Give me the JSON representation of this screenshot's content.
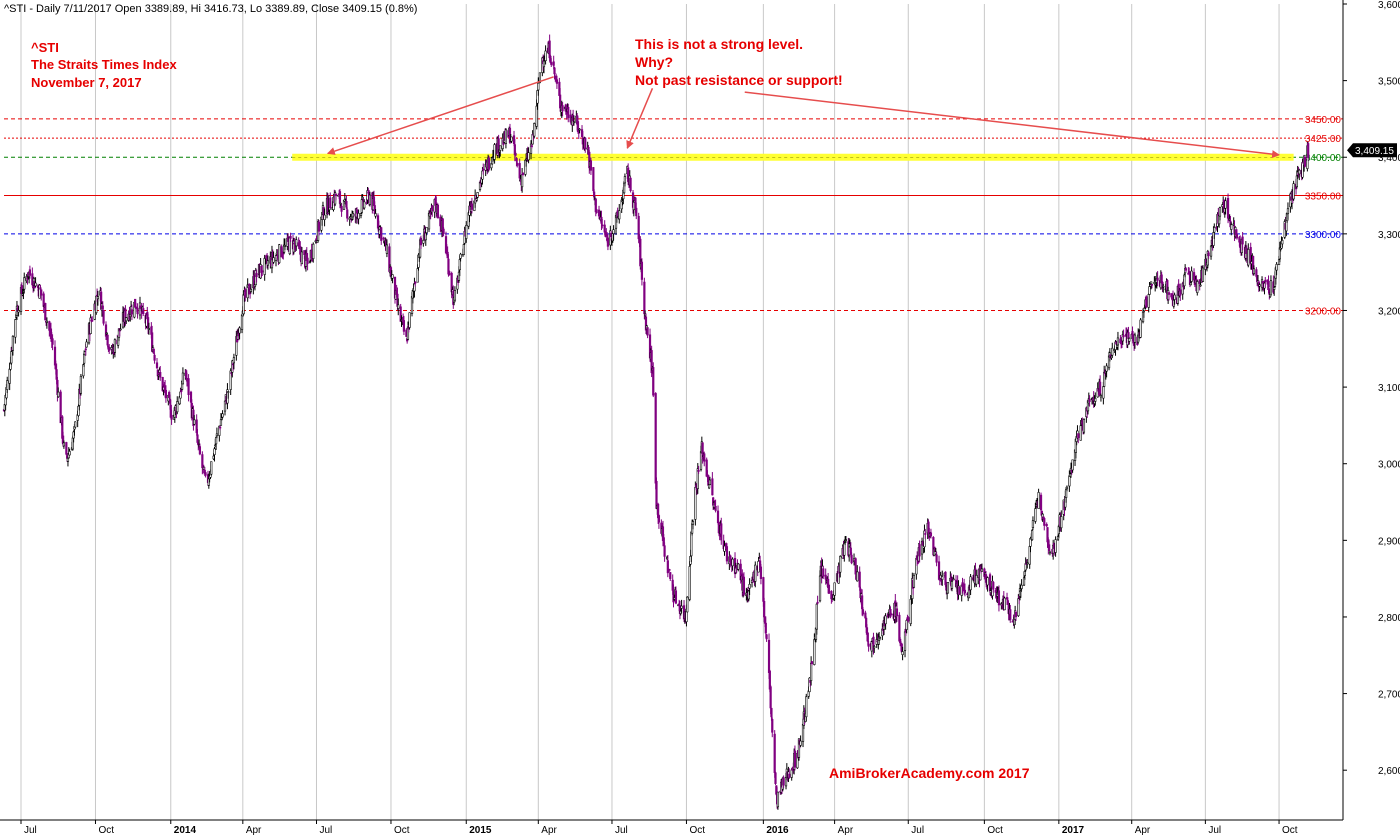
{
  "header_text": "^STI - Daily 7/11/2017 Open 3389.89, Hi 3416.73, Lo 3389.89, Close 3409.15 (0.8%)",
  "title_lines": [
    "^STI",
    "The Straits Times Index",
    "November 7, 2017"
  ],
  "annotation_lines": [
    "This is not a strong level.",
    "Why?",
    "Not past resistance or support!"
  ],
  "watermark": "AmiBrokerAcademy.com  2017",
  "colors": {
    "title": "#e60000",
    "annotation": "#e60000",
    "arrow": "#e64d4d",
    "highlight": "#ffff33",
    "bull_candle": "#000000",
    "bear_candle": "#800080",
    "price_tag": "#000000"
  },
  "chart_data": {
    "type": "candlestick",
    "symbol": "^STI",
    "interval": "Daily",
    "ylim": [
      2535,
      3600
    ],
    "x_range": [
      "2013-06-10",
      "2017-12-20"
    ],
    "y_ticks": [
      2600,
      2700,
      2800,
      2900,
      3000,
      3100,
      3200,
      3300,
      3400,
      3500,
      3600
    ],
    "y_tick_labels": [
      "2,600",
      "2,700",
      "2,800",
      "2,900",
      "3,000",
      "3,100",
      "3,200",
      "3,300",
      "3,400",
      "3,500",
      "3,600"
    ],
    "x_ticks": [
      {
        "date": "2013-07-01",
        "label": "Jul",
        "bold": false
      },
      {
        "date": "2013-10-01",
        "label": "Oct",
        "bold": false
      },
      {
        "date": "2014-01-02",
        "label": "2014",
        "bold": true
      },
      {
        "date": "2014-04-01",
        "label": "Apr",
        "bold": false
      },
      {
        "date": "2014-07-01",
        "label": "Jul",
        "bold": false
      },
      {
        "date": "2014-10-01",
        "label": "Oct",
        "bold": false
      },
      {
        "date": "2015-01-02",
        "label": "2015",
        "bold": true
      },
      {
        "date": "2015-04-01",
        "label": "Apr",
        "bold": false
      },
      {
        "date": "2015-07-01",
        "label": "Jul",
        "bold": false
      },
      {
        "date": "2015-10-01",
        "label": "Oct",
        "bold": false
      },
      {
        "date": "2016-01-04",
        "label": "2016",
        "bold": true
      },
      {
        "date": "2016-04-01",
        "label": "Apr",
        "bold": false
      },
      {
        "date": "2016-07-01",
        "label": "Jul",
        "bold": false
      },
      {
        "date": "2016-10-03",
        "label": "Oct",
        "bold": false
      },
      {
        "date": "2017-01-03",
        "label": "2017",
        "bold": true
      },
      {
        "date": "2017-04-03",
        "label": "Apr",
        "bold": false
      },
      {
        "date": "2017-07-03",
        "label": "Jul",
        "bold": false
      },
      {
        "date": "2017-10-02",
        "label": "Oct",
        "bold": false
      }
    ],
    "levels": [
      {
        "value": 3450,
        "label": "3450.00",
        "color": "#e60000",
        "style": "dashed"
      },
      {
        "value": 3425,
        "label": "3425.00",
        "color": "#e60000",
        "style": "dotted"
      },
      {
        "value": 3400,
        "label": "3400.00",
        "color": "#008000",
        "style": "dashed"
      },
      {
        "value": 3350,
        "label": "3350.00",
        "color": "#e60000",
        "style": "solid"
      },
      {
        "value": 3300,
        "label": "3300.00",
        "color": "#0000e6",
        "style": "dashed"
      },
      {
        "value": 3200,
        "label": "3200.00",
        "color": "#e60000",
        "style": "dashed"
      }
    ],
    "highlight_band": {
      "value": 3400,
      "from": "2014-06-01",
      "to": "2017-10-20"
    },
    "last_price": {
      "value": 3409.15,
      "label": "3,409.15"
    },
    "arrows": [
      {
        "from": [
          "2015-04-20",
          3505
        ],
        "to": [
          "2014-07-15",
          3405
        ]
      },
      {
        "from": [
          "2015-08-20",
          3490
        ],
        "to": [
          "2015-07-20",
          3412
        ]
      },
      {
        "from": [
          "2015-12-12",
          3485
        ],
        "to": [
          "2017-10-02",
          3403
        ]
      }
    ],
    "price_path": [
      [
        "2013-06-10",
        3070
      ],
      [
        "2013-06-25",
        3200
      ],
      [
        "2013-07-10",
        3250
      ],
      [
        "2013-07-25",
        3225
      ],
      [
        "2013-08-10",
        3150
      ],
      [
        "2013-08-25",
        3000
      ],
      [
        "2013-09-05",
        3040
      ],
      [
        "2013-09-20",
        3160
      ],
      [
        "2013-10-05",
        3230
      ],
      [
        "2013-10-20",
        3140
      ],
      [
        "2013-11-05",
        3190
      ],
      [
        "2013-11-20",
        3210
      ],
      [
        "2013-12-05",
        3180
      ],
      [
        "2013-12-20",
        3110
      ],
      [
        "2014-01-05",
        3060
      ],
      [
        "2014-01-20",
        3120
      ],
      [
        "2014-02-05",
        3020
      ],
      [
        "2014-02-15",
        2970
      ],
      [
        "2014-03-01",
        3040
      ],
      [
        "2014-03-15",
        3100
      ],
      [
        "2014-04-01",
        3210
      ],
      [
        "2014-04-20",
        3250
      ],
      [
        "2014-05-10",
        3270
      ],
      [
        "2014-06-01",
        3290
      ],
      [
        "2014-06-20",
        3260
      ],
      [
        "2014-07-10",
        3330
      ],
      [
        "2014-07-25",
        3350
      ],
      [
        "2014-08-15",
        3320
      ],
      [
        "2014-09-05",
        3350
      ],
      [
        "2014-09-25",
        3280
      ],
      [
        "2014-10-10",
        3200
      ],
      [
        "2014-10-20",
        3160
      ],
      [
        "2014-11-05",
        3280
      ],
      [
        "2014-11-25",
        3340
      ],
      [
        "2014-12-05",
        3300
      ],
      [
        "2014-12-18",
        3210
      ],
      [
        "2015-01-05",
        3330
      ],
      [
        "2015-01-20",
        3370
      ],
      [
        "2015-02-05",
        3410
      ],
      [
        "2015-02-25",
        3430
      ],
      [
        "2015-03-10",
        3370
      ],
      [
        "2015-03-25",
        3420
      ],
      [
        "2015-04-05",
        3530
      ],
      [
        "2015-04-15",
        3540
      ],
      [
        "2015-04-28",
        3470
      ],
      [
        "2015-05-15",
        3450
      ],
      [
        "2015-06-01",
        3410
      ],
      [
        "2015-06-10",
        3340
      ],
      [
        "2015-06-25",
        3290
      ],
      [
        "2015-07-08",
        3320
      ],
      [
        "2015-07-20",
        3380
      ],
      [
        "2015-08-01",
        3320
      ],
      [
        "2015-08-10",
        3200
      ],
      [
        "2015-08-20",
        3120
      ],
      [
        "2015-08-25",
        2950
      ],
      [
        "2015-09-05",
        2880
      ],
      [
        "2015-09-15",
        2830
      ],
      [
        "2015-09-30",
        2800
      ],
      [
        "2015-10-10",
        2950
      ],
      [
        "2015-10-20",
        3020
      ],
      [
        "2015-11-05",
        2940
      ],
      [
        "2015-11-20",
        2880
      ],
      [
        "2015-12-05",
        2860
      ],
      [
        "2015-12-15",
        2820
      ],
      [
        "2015-12-30",
        2880
      ],
      [
        "2016-01-10",
        2740
      ],
      [
        "2016-01-20",
        2560
      ],
      [
        "2016-02-05",
        2600
      ],
      [
        "2016-02-15",
        2620
      ],
      [
        "2016-03-01",
        2710
      ],
      [
        "2016-03-15",
        2860
      ],
      [
        "2016-03-30",
        2830
      ],
      [
        "2016-04-15",
        2900
      ],
      [
        "2016-04-28",
        2860
      ],
      [
        "2016-05-15",
        2760
      ],
      [
        "2016-05-30",
        2790
      ],
      [
        "2016-06-15",
        2810
      ],
      [
        "2016-06-24",
        2750
      ],
      [
        "2016-07-10",
        2870
      ],
      [
        "2016-07-25",
        2920
      ],
      [
        "2016-08-10",
        2850
      ],
      [
        "2016-08-25",
        2840
      ],
      [
        "2016-09-10",
        2830
      ],
      [
        "2016-09-25",
        2860
      ],
      [
        "2016-10-10",
        2840
      ],
      [
        "2016-10-25",
        2820
      ],
      [
        "2016-11-10",
        2800
      ],
      [
        "2016-11-25",
        2880
      ],
      [
        "2016-12-10",
        2960
      ],
      [
        "2016-12-25",
        2880
      ],
      [
        "2017-01-10",
        2950
      ],
      [
        "2017-01-25",
        3030
      ],
      [
        "2017-02-10",
        3080
      ],
      [
        "2017-02-25",
        3100
      ],
      [
        "2017-03-10",
        3150
      ],
      [
        "2017-03-25",
        3170
      ],
      [
        "2017-04-10",
        3160
      ],
      [
        "2017-04-25",
        3230
      ],
      [
        "2017-05-10",
        3240
      ],
      [
        "2017-05-25",
        3210
      ],
      [
        "2017-06-10",
        3250
      ],
      [
        "2017-06-25",
        3230
      ],
      [
        "2017-07-10",
        3290
      ],
      [
        "2017-07-25",
        3340
      ],
      [
        "2017-08-10",
        3300
      ],
      [
        "2017-08-25",
        3270
      ],
      [
        "2017-09-10",
        3230
      ],
      [
        "2017-09-25",
        3230
      ],
      [
        "2017-10-05",
        3290
      ],
      [
        "2017-10-15",
        3340
      ],
      [
        "2017-10-25",
        3370
      ],
      [
        "2017-11-07",
        3409
      ]
    ]
  }
}
